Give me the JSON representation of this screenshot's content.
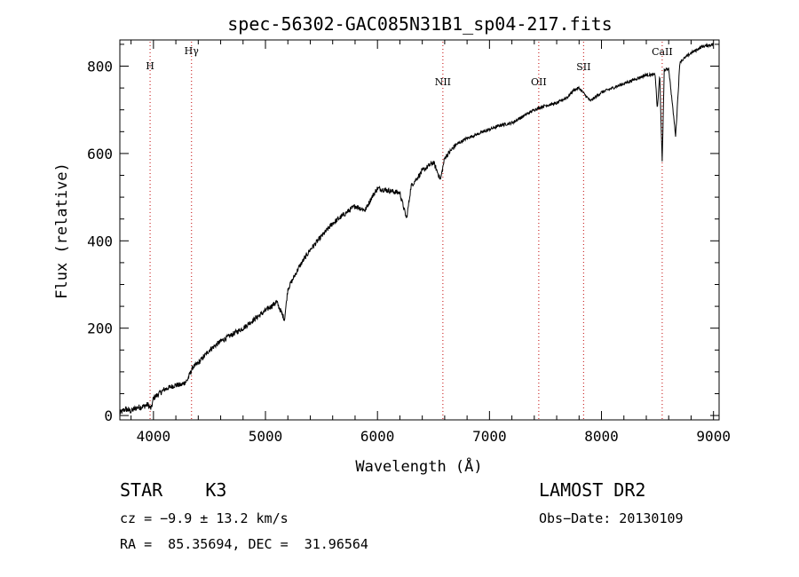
{
  "chart_data": {
    "type": "line",
    "title": "spec-56302-GAC085N31B1_sp04-217.fits",
    "xlabel": "Wavelength (Å)",
    "ylabel": "Flux (relative)",
    "xlim": [
      3700,
      9050
    ],
    "ylim": [
      -10,
      860
    ],
    "xticks": [
      4000,
      5000,
      6000,
      7000,
      8000,
      9000
    ],
    "yticks": [
      0,
      200,
      400,
      600,
      800
    ],
    "grid": false,
    "lines": [
      {
        "name": "H",
        "x": 3970
      },
      {
        "name": "Hγ",
        "x": 4340
      },
      {
        "name": "NII",
        "x": 6584
      },
      {
        "name": "OII",
        "x": 7440
      },
      {
        "name": "SII",
        "x": 7840
      },
      {
        "name": "CaII",
        "x": 8542
      }
    ],
    "line_color": "#c00000",
    "spectrum": {
      "x": [
        3700,
        3750,
        3800,
        3850,
        3900,
        3950,
        3980,
        4000,
        4100,
        4200,
        4250,
        4300,
        4350,
        4400,
        4500,
        4600,
        4700,
        4800,
        4900,
        5000,
        5100,
        5170,
        5200,
        5300,
        5400,
        5500,
        5600,
        5700,
        5800,
        5890,
        5950,
        6000,
        6100,
        6200,
        6260,
        6300,
        6400,
        6500,
        6563,
        6600,
        6700,
        6800,
        6900,
        7000,
        7100,
        7200,
        7300,
        7400,
        7500,
        7600,
        7700,
        7750,
        7800,
        7900,
        8000,
        8100,
        8200,
        8300,
        8400,
        8480,
        8498,
        8520,
        8542,
        8560,
        8600,
        8662,
        8700,
        8800,
        8900,
        9000
      ],
      "y": [
        5,
        15,
        10,
        18,
        20,
        25,
        15,
        40,
        60,
        70,
        70,
        80,
        110,
        120,
        150,
        170,
        185,
        200,
        220,
        240,
        260,
        220,
        290,
        340,
        380,
        410,
        440,
        460,
        480,
        470,
        500,
        520,
        515,
        510,
        450,
        525,
        560,
        580,
        540,
        590,
        620,
        635,
        645,
        655,
        665,
        670,
        685,
        700,
        710,
        715,
        730,
        745,
        750,
        720,
        740,
        750,
        760,
        770,
        780,
        780,
        700,
        780,
        580,
        790,
        795,
        640,
        810,
        830,
        845,
        850
      ]
    }
  },
  "info": {
    "object": "STAR    K3",
    "survey": "LAMOST DR2",
    "cz": "cz = −9.9 ± 13.2 km/s",
    "obs_date": "Obs−Date: 20130109",
    "radec": "RA =  85.35694, DEC =  31.96564"
  }
}
